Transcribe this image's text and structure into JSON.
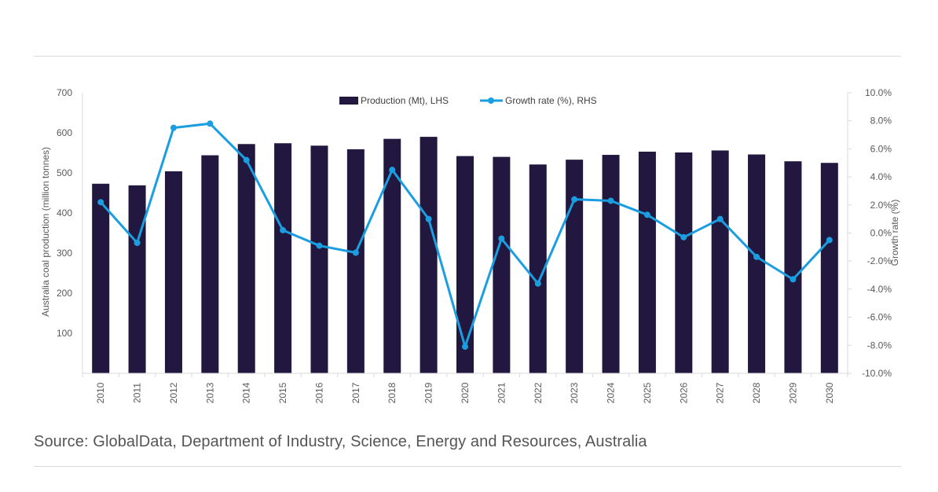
{
  "source": "Source: GlobalData, Department of Industry, Science, Energy and Resources, Australia",
  "chart_data": {
    "type": "bar",
    "categories": [
      "2010",
      "2011",
      "2012",
      "2013",
      "2014",
      "2015",
      "2016",
      "2017",
      "2018",
      "2019",
      "2020",
      "2021",
      "2022",
      "2023",
      "2024",
      "2025",
      "2026",
      "2027",
      "2028",
      "2029",
      "2030"
    ],
    "series": [
      {
        "name": "Production (Mt), LHS",
        "type": "bar",
        "axis": "left",
        "color": "#22173f",
        "values": [
          473,
          469,
          504,
          544,
          572,
          574,
          568,
          559,
          585,
          590,
          542,
          540,
          521,
          533,
          545,
          553,
          551,
          556,
          546,
          529,
          525
        ]
      },
      {
        "name": "Growth rate (%), RHS",
        "type": "line",
        "axis": "right",
        "color": "#1a9ee0",
        "values": [
          2.2,
          -0.7,
          7.5,
          7.8,
          5.2,
          0.2,
          -0.9,
          -1.4,
          4.5,
          1.0,
          -8.1,
          -0.4,
          -3.6,
          2.4,
          2.3,
          1.3,
          -0.3,
          1.0,
          -1.7,
          -3.3,
          -0.5
        ]
      }
    ],
    "ylabel": "Australia coal production (million tonnes)",
    "y2label": "Growth rate (%)",
    "ylim": [
      0,
      700
    ],
    "y2lim": [
      -10,
      10
    ],
    "yticks": [
      "100",
      "200",
      "300",
      "400",
      "500",
      "600",
      "700"
    ],
    "y2ticks": [
      "10.0%",
      "8.0%",
      "6.0%",
      "4.0%",
      "2.0%",
      "0.0%",
      "-2.0%",
      "-4.0%",
      "-6.0%",
      "-8.0%",
      "-10.0%"
    ],
    "legend_position": "top-center",
    "grid": false
  }
}
